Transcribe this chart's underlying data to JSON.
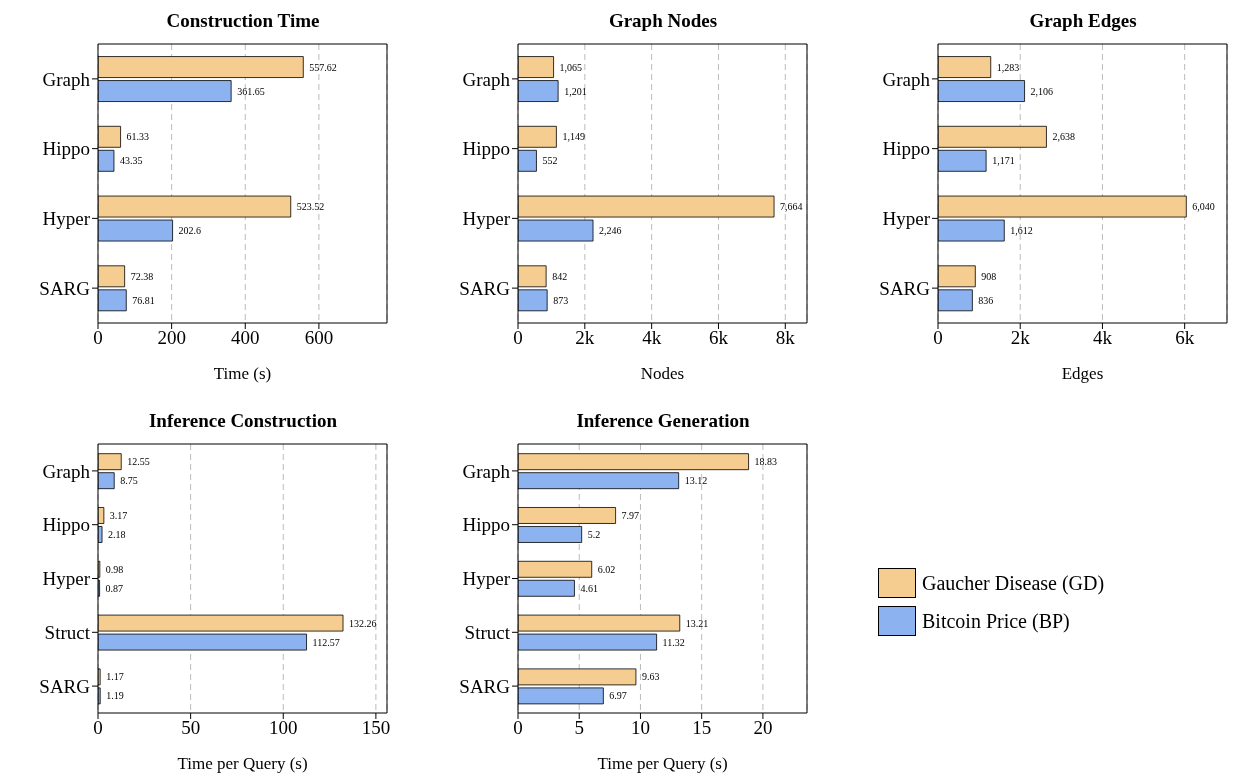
{
  "chart_data": [
    {
      "type": "bar",
      "orientation": "horizontal",
      "title": "Construction Time",
      "xlabel": "Time (s)",
      "categories": [
        "Graph",
        "Hippo",
        "Hyper",
        "SARG"
      ],
      "xlim": [
        0,
        785
      ],
      "xticks": [
        0,
        200,
        400,
        600
      ],
      "grid": "x",
      "series": [
        {
          "color": "#f5cd90",
          "values": [
            557.62,
            61.33,
            523.52,
            72.38
          ],
          "value_labels": [
            "557.62",
            "61.33",
            "523.52",
            "72.38"
          ]
        },
        {
          "color": "#8cb2f0",
          "values": [
            361.65,
            43.35,
            202.6,
            76.81
          ],
          "value_labels": [
            "361.65",
            "43.35",
            "202.6",
            "76.81"
          ]
        }
      ]
    },
    {
      "type": "bar",
      "orientation": "horizontal",
      "title": "Graph Nodes",
      "xlabel": "Nodes",
      "categories": [
        "Graph",
        "Hippo",
        "Hyper",
        "SARG"
      ],
      "xlim": [
        0,
        8650
      ],
      "xticks": [
        0,
        {
          "value": 2000,
          "label": "2k"
        },
        {
          "value": 4000,
          "label": "4k"
        },
        {
          "value": 6000,
          "label": "6k"
        },
        {
          "value": 8000,
          "label": "8k"
        }
      ],
      "grid": "x",
      "series": [
        {
          "color": "#f5cd90",
          "values": [
            1065,
            1149,
            7664,
            842
          ],
          "value_labels": [
            "1,065",
            "1,149",
            "7,664",
            "842"
          ]
        },
        {
          "color": "#8cb2f0",
          "values": [
            1201,
            552,
            2246,
            873
          ],
          "value_labels": [
            "1,201",
            "552",
            "2,246",
            "873"
          ]
        }
      ]
    },
    {
      "type": "bar",
      "orientation": "horizontal",
      "title": "Graph Edges",
      "xlabel": "Edges",
      "categories": [
        "Graph",
        "Hippo",
        "Hyper",
        "SARG"
      ],
      "xlim": [
        0,
        7030
      ],
      "xticks": [
        0,
        {
          "value": 2000,
          "label": "2k"
        },
        {
          "value": 4000,
          "label": "4k"
        },
        {
          "value": 6000,
          "label": "6k"
        }
      ],
      "grid": "x",
      "series": [
        {
          "color": "#f5cd90",
          "values": [
            1283,
            2638,
            6040,
            908
          ],
          "value_labels": [
            "1,283",
            "2,638",
            "6,040",
            "908"
          ]
        },
        {
          "color": "#8cb2f0",
          "values": [
            2106,
            1171,
            1612,
            836
          ],
          "value_labels": [
            "2,106",
            "1,171",
            "1,612",
            "836"
          ]
        }
      ]
    },
    {
      "type": "bar",
      "orientation": "horizontal",
      "title": "Inference Construction",
      "xlabel": "Time per Query (s)",
      "categories": [
        "Graph",
        "Hippo",
        "Hyper",
        "Struct",
        "SARG"
      ],
      "xlim": [
        0,
        156
      ],
      "xticks": [
        0,
        50,
        100,
        150
      ],
      "grid": "x",
      "series": [
        {
          "color": "#f5cd90",
          "values": [
            12.55,
            3.17,
            0.98,
            132.26,
            1.17
          ],
          "value_labels": [
            "12.55",
            "3.17",
            "0.98",
            "132.26",
            "1.17"
          ]
        },
        {
          "color": "#8cb2f0",
          "values": [
            8.75,
            2.18,
            0.87,
            112.57,
            1.19
          ],
          "value_labels": [
            "8.75",
            "2.18",
            "0.87",
            "112.57",
            "1.19"
          ]
        }
      ]
    },
    {
      "type": "bar",
      "orientation": "horizontal",
      "title": "Inference Generation",
      "xlabel": "Time per Query (s)",
      "categories": [
        "Graph",
        "Hippo",
        "Hyper",
        "Struct",
        "SARG"
      ],
      "xlim": [
        0,
        23.6
      ],
      "xticks": [
        0,
        5,
        10,
        15,
        20
      ],
      "grid": "x",
      "legend": "right",
      "series": [
        {
          "name": "Gaucher Disease (GD)",
          "color": "#f5cd90",
          "values": [
            18.83,
            7.97,
            6.02,
            13.21,
            9.63
          ],
          "value_labels": [
            "18.83",
            "7.97",
            "6.02",
            "13.21",
            "9.63"
          ]
        },
        {
          "name": "Bitcoin Price (BP)",
          "color": "#8cb2f0",
          "values": [
            13.12,
            5.2,
            4.61,
            11.32,
            6.97
          ],
          "value_labels": [
            "13.12",
            "5.2",
            "4.61",
            "11.32",
            "6.97"
          ]
        }
      ]
    }
  ]
}
